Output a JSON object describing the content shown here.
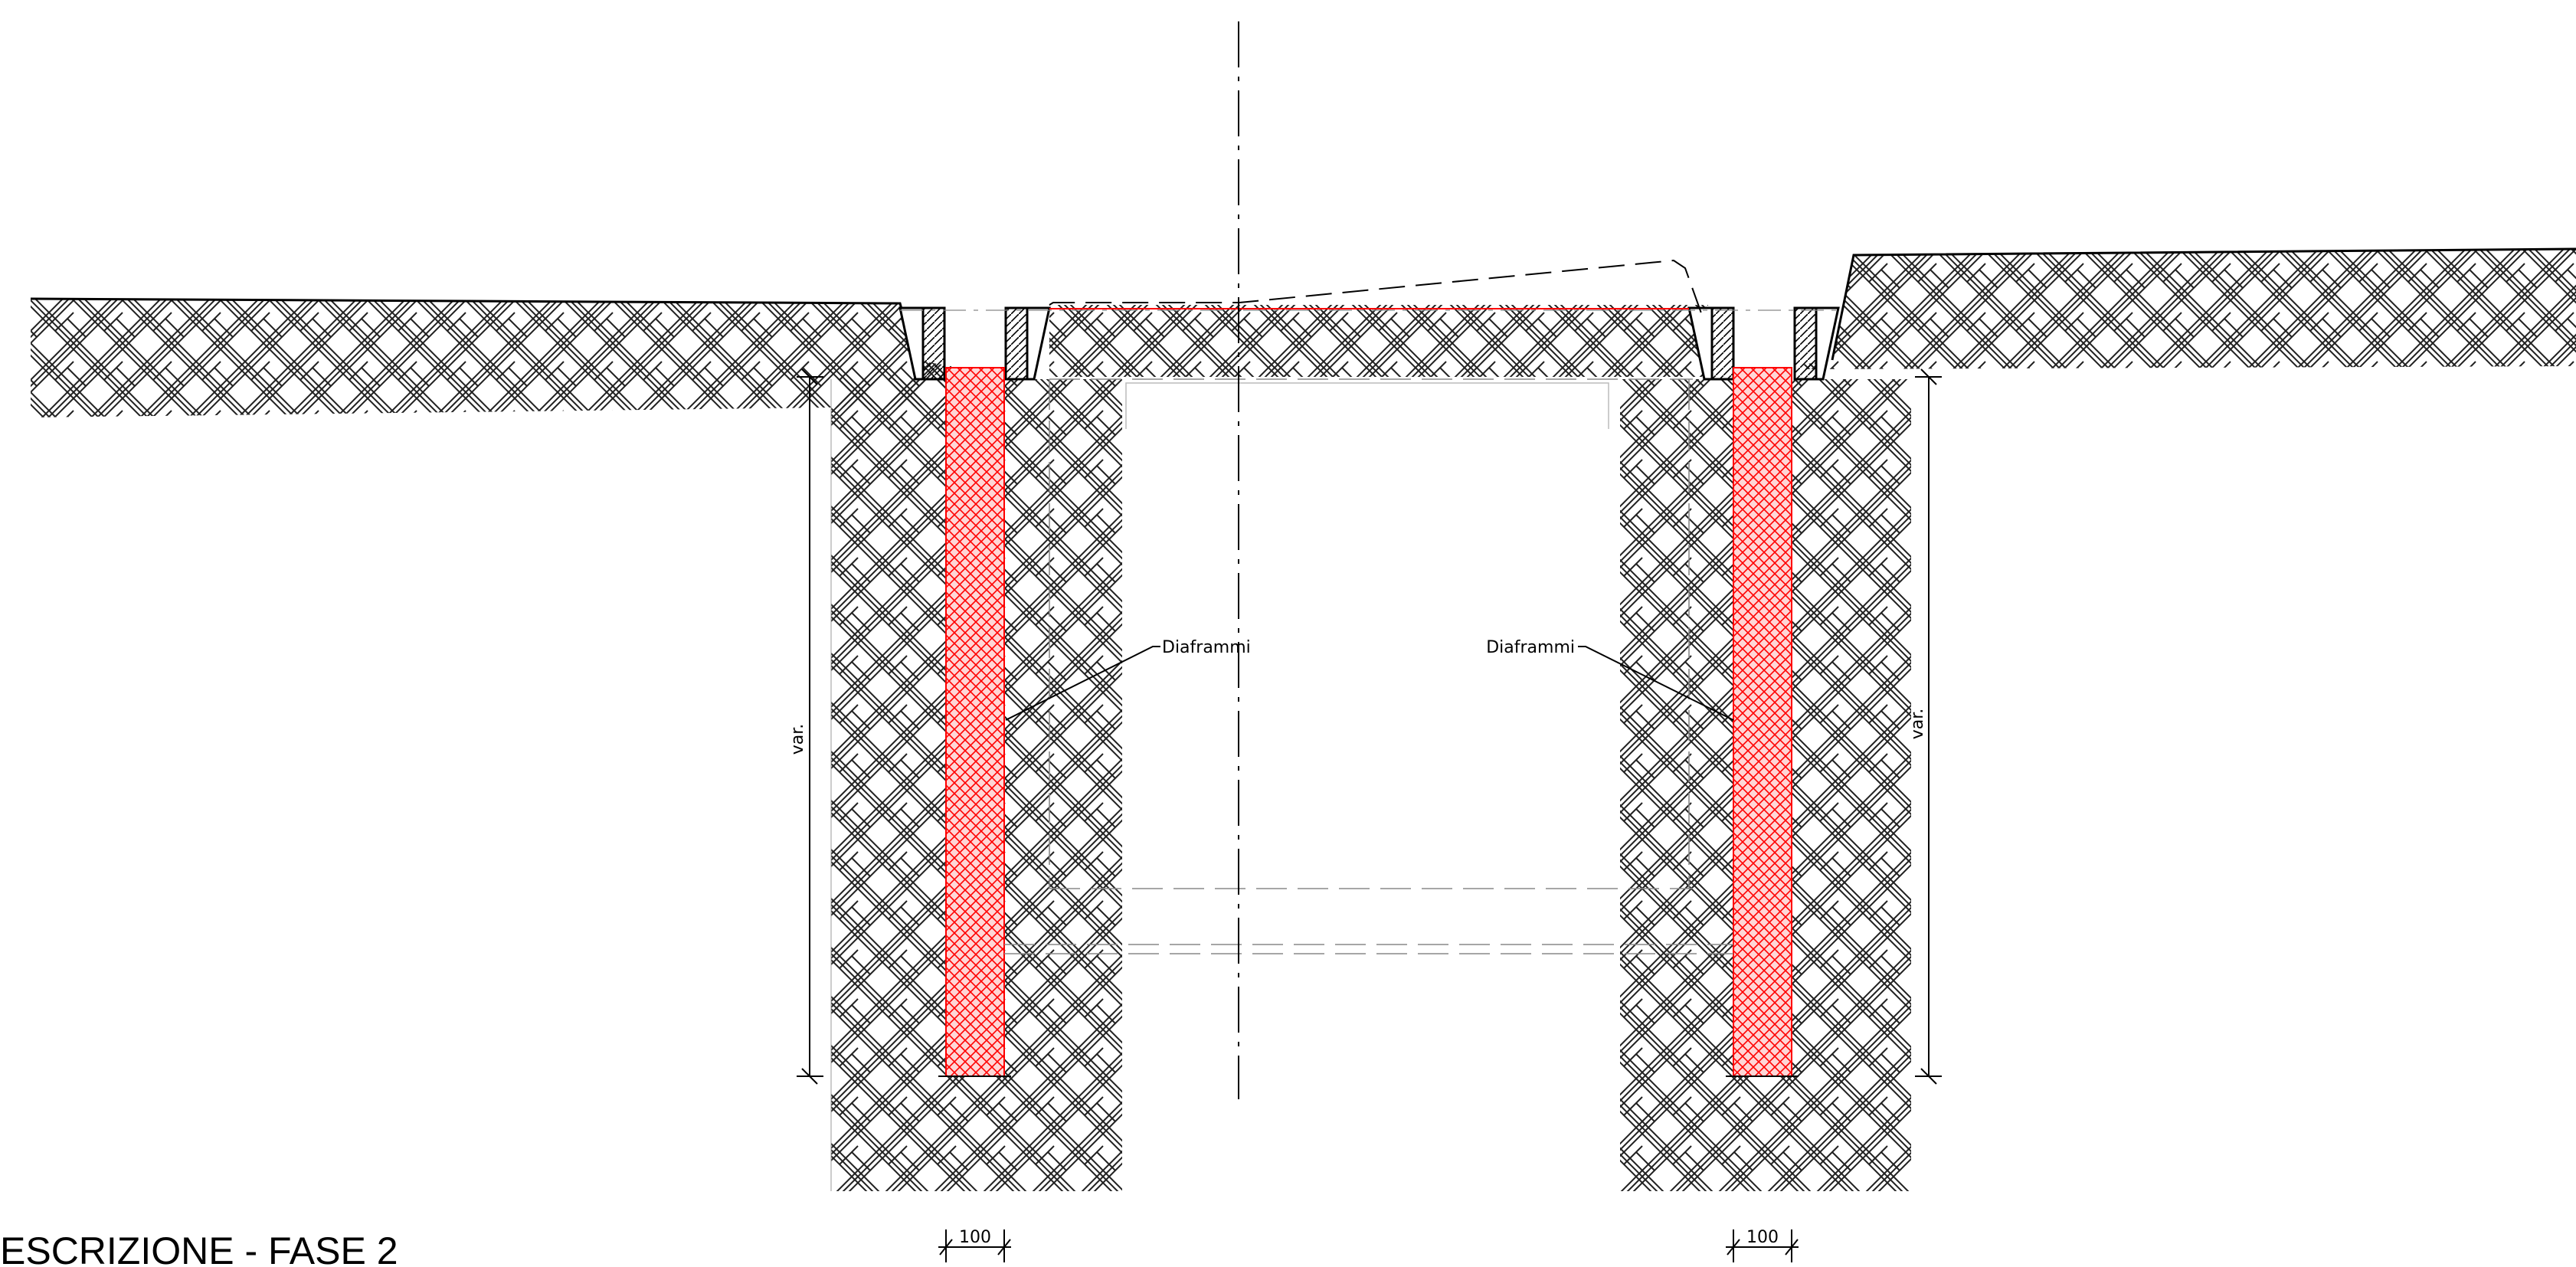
{
  "title": "ESCRIZIONE - FASE 2",
  "labels": {
    "wall_left": "Diaframmi",
    "wall_right": "Diaframmi"
  },
  "dimensions": {
    "depth_left": "var.",
    "depth_right": "var.",
    "thickness_left": "100",
    "thickness_right": "100"
  },
  "colors": {
    "diaphragm_wall": "#ff0000",
    "soil_hatch": "#222222",
    "lines": "#000000",
    "background": "#ffffff"
  }
}
